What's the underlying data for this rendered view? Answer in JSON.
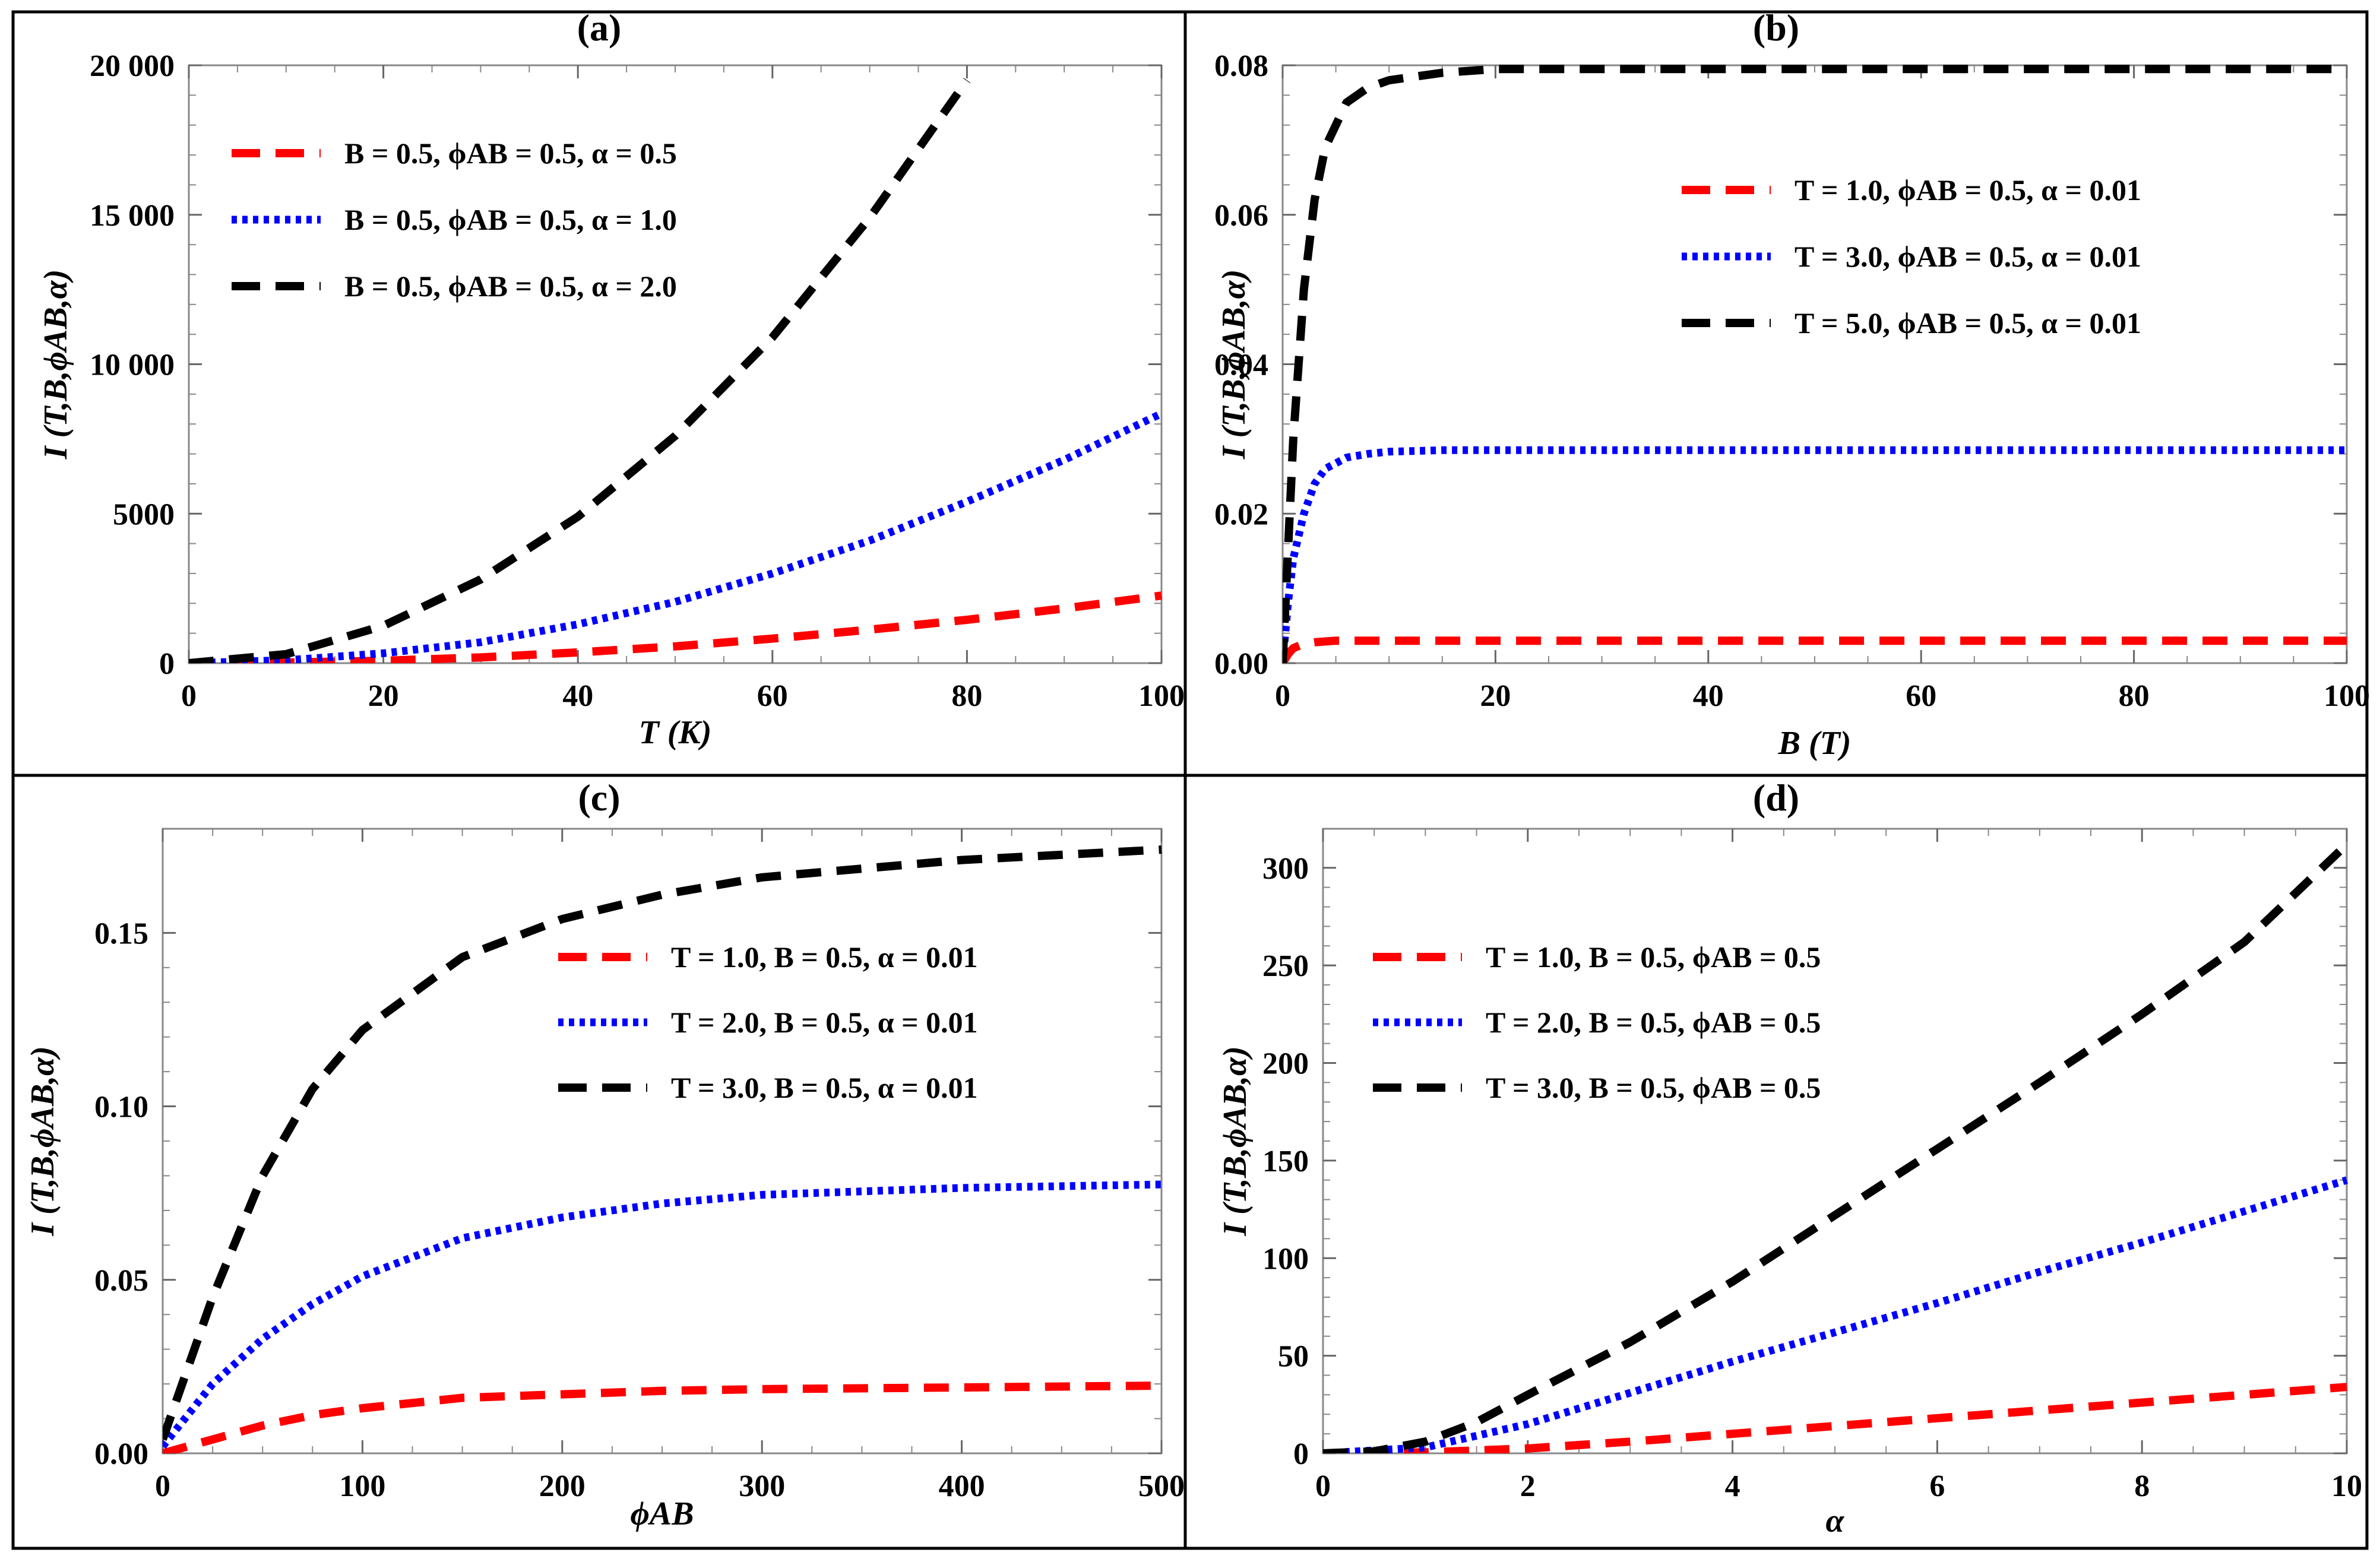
{
  "chart_data": [
    {
      "type": "line",
      "title": "(a)",
      "xlabel": "T (K)",
      "ylabel": "I (T,B,ϕAB,α)",
      "xlim": [
        0,
        100
      ],
      "ylim": [
        0,
        20000
      ],
      "xticks": [
        0,
        20,
        40,
        60,
        80,
        100
      ],
      "yticks": [
        0,
        5000,
        10000,
        15000,
        20000
      ],
      "ytick_labels": [
        "0",
        "5000",
        "10 000",
        "15 000",
        "20 000"
      ],
      "legend_position": "top-left",
      "series": [
        {
          "name": "B = 0.5, ϕAB = 0.5, α = 0.5",
          "color": "#ff0000",
          "style": "dashed",
          "x": [
            0,
            10,
            20,
            30,
            40,
            50,
            60,
            70,
            80,
            90,
            100
          ],
          "y": [
            0,
            20,
            80,
            190,
            360,
            560,
            820,
            1120,
            1450,
            1830,
            2260
          ]
        },
        {
          "name": "B = 0.5, ϕAB = 0.5, α = 1.0",
          "color": "#0000ff",
          "style": "dotted",
          "x": [
            0,
            10,
            20,
            30,
            40,
            50,
            60,
            70,
            80,
            90,
            100
          ],
          "y": [
            0,
            100,
            330,
            700,
            1300,
            2050,
            3000,
            4100,
            5400,
            6800,
            8350
          ]
        },
        {
          "name": "B = 0.5, ϕAB = 0.5, α = 2.0",
          "color": "#000000",
          "style": "dashed",
          "x": [
            0,
            10,
            20,
            30,
            40,
            50,
            60,
            70,
            80
          ],
          "y": [
            0,
            300,
            1250,
            2800,
            4900,
            7600,
            10900,
            14900,
            19500
          ]
        }
      ]
    },
    {
      "type": "line",
      "title": "(b)",
      "xlabel": "B (T)",
      "ylabel": "I (T,B,ϕAB,α)",
      "xlim": [
        0,
        100
      ],
      "ylim": [
        0,
        0.08
      ],
      "xticks": [
        0,
        20,
        40,
        60,
        80,
        100
      ],
      "yticks": [
        0,
        0.02,
        0.04,
        0.06,
        0.08
      ],
      "ytick_labels": [
        "0.00",
        "0.02",
        "0.04",
        "0.06",
        "0.08"
      ],
      "legend_position": "top-right",
      "series": [
        {
          "name": "T = 1.0, ϕAB = 0.5, α = 0.01",
          "color": "#ff0000",
          "style": "dashed",
          "x": [
            0,
            0.5,
            1,
            2,
            3,
            5,
            10,
            20,
            100
          ],
          "y": [
            0,
            0.0012,
            0.002,
            0.0026,
            0.0028,
            0.003,
            0.003,
            0.003,
            0.003
          ]
        },
        {
          "name": "T = 3.0, ϕAB = 0.5, α = 0.01",
          "color": "#0000ff",
          "style": "dotted",
          "x": [
            0,
            0.5,
            1,
            2,
            3,
            4,
            6,
            8,
            10,
            15,
            20,
            100
          ],
          "y": [
            0,
            0.008,
            0.014,
            0.02,
            0.024,
            0.026,
            0.0275,
            0.028,
            0.0283,
            0.0285,
            0.0285,
            0.0285
          ]
        },
        {
          "name": "T = 5.0, ϕAB = 0.5, α = 0.01",
          "color": "#000000",
          "style": "dashed",
          "x": [
            0,
            0.5,
            1,
            2,
            3,
            4,
            6,
            8,
            10,
            15,
            20,
            30,
            100
          ],
          "y": [
            0,
            0.015,
            0.03,
            0.05,
            0.062,
            0.069,
            0.075,
            0.077,
            0.078,
            0.079,
            0.0795,
            0.0795,
            0.0795
          ]
        }
      ]
    },
    {
      "type": "line",
      "title": "(c)",
      "xlabel": "ϕAB",
      "ylabel": "I (T,B,ϕAB,α)",
      "xlim": [
        0,
        500
      ],
      "ylim": [
        0,
        0.18
      ],
      "xticks": [
        0,
        100,
        200,
        300,
        400,
        500
      ],
      "yticks": [
        0,
        0.05,
        0.1,
        0.15
      ],
      "ytick_labels": [
        "0.00",
        "0.05",
        "0.10",
        "0.15"
      ],
      "legend_position": "center-right",
      "series": [
        {
          "name": "T = 1.0, B = 0.5, α = 0.01",
          "color": "#ff0000",
          "style": "dashed",
          "x": [
            0,
            25,
            50,
            75,
            100,
            150,
            200,
            250,
            300,
            400,
            500
          ],
          "y": [
            0,
            0.004,
            0.008,
            0.011,
            0.013,
            0.016,
            0.017,
            0.018,
            0.0185,
            0.019,
            0.0195
          ]
        },
        {
          "name": "T = 2.0, B = 0.5, α = 0.01",
          "color": "#0000ff",
          "style": "dotted",
          "x": [
            0,
            25,
            50,
            75,
            100,
            150,
            200,
            250,
            300,
            400,
            500
          ],
          "y": [
            0.002,
            0.02,
            0.033,
            0.043,
            0.051,
            0.062,
            0.068,
            0.072,
            0.0745,
            0.0765,
            0.0775
          ]
        },
        {
          "name": "T = 3.0, B = 0.5, α = 0.01",
          "color": "#000000",
          "style": "dashed",
          "x": [
            0,
            25,
            50,
            75,
            100,
            150,
            200,
            250,
            300,
            400,
            500
          ],
          "y": [
            0.004,
            0.045,
            0.08,
            0.105,
            0.122,
            0.143,
            0.154,
            0.161,
            0.166,
            0.171,
            0.174
          ]
        }
      ]
    },
    {
      "type": "line",
      "title": "(d)",
      "xlabel": "α",
      "ylabel": "I (T,B,ϕAB,α)",
      "xlim": [
        0,
        10
      ],
      "ylim": [
        0,
        320
      ],
      "xticks": [
        0,
        2,
        4,
        6,
        8,
        10
      ],
      "yticks": [
        0,
        50,
        100,
        150,
        200,
        250,
        300
      ],
      "ytick_labels": [
        "0",
        "50",
        "100",
        "150",
        "200",
        "250",
        "300"
      ],
      "legend_position": "top-left",
      "series": [
        {
          "name": "T = 1.0, B = 0.5, ϕAB = 0.5",
          "color": "#ff0000",
          "style": "dashed",
          "x": [
            0,
            1,
            2,
            3,
            4,
            5,
            6,
            7,
            8,
            9,
            10
          ],
          "y": [
            0,
            0.5,
            2.5,
            6,
            10,
            14,
            18,
            22,
            26,
            30,
            34
          ]
        },
        {
          "name": "T = 2.0, B = 0.5, ϕAB = 0.5",
          "color": "#0000ff",
          "style": "dotted",
          "x": [
            0,
            1,
            2,
            3,
            4,
            5,
            6,
            7,
            8,
            9,
            10
          ],
          "y": [
            0,
            3,
            15,
            31,
            47,
            62,
            77,
            93,
            108,
            124,
            140
          ]
        },
        {
          "name": "T = 3.0, B = 0.5, ϕAB = 0.5",
          "color": "#000000",
          "style": "dashed",
          "x": [
            0,
            0.5,
            1,
            1.5,
            2,
            3,
            4,
            5,
            6,
            7,
            8,
            9,
            10
          ],
          "y": [
            0,
            1,
            6,
            16,
            30,
            57,
            88,
            122,
            156,
            190,
            225,
            262,
            312
          ]
        }
      ]
    }
  ]
}
